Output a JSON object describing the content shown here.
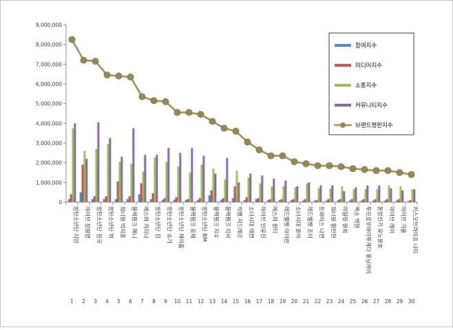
{
  "chart_data": {
    "type": "bar",
    "title": "",
    "xlabel": "",
    "ylabel": "",
    "ylim": [
      0,
      9000000
    ],
    "yticks": [
      0,
      1000000,
      2000000,
      3000000,
      4000000,
      5000000,
      6000000,
      7000000,
      8000000,
      9000000
    ],
    "ytick_labels": [
      "0",
      "1,000,000",
      "2,000,000",
      "3,000,000",
      "4,000,000",
      "5,000,000",
      "6,000,000",
      "7,000,000",
      "8,000,000",
      "9,000,000"
    ],
    "grid": false,
    "legend_position": "top-right",
    "categories": [
      "방탄소년단 지민",
      "아이브 장원영",
      "방탄소년단 정국",
      "방탄소년단 뷔",
      "워너원 박지훈",
      "블랙핑크 제니",
      "에스파 카리나",
      "방탄소년단 진",
      "방탄소년단 슈가",
      "방탄소년단 제이홉",
      "블랙핑크 로제",
      "방탄소년단 RM",
      "블랙핑크 지수",
      "블랙핑크 리사",
      "빅뱅 지드래곤",
      "소녀시대 태연",
      "아이브 안유진",
      "에스파 윈터",
      "레드벨벳 아이린",
      "소녀시대 윤아",
      "레드벨벳 조이",
      "트와이스 나연",
      "워너원 황민현",
      "아일릿 원희",
      "엑소 백현",
      "투모로우바이투게더 휴닝카이",
      "동방신기 유노윤호",
      "아이브 레이",
      "아이브 가을",
      "키스오브라이프 나띠"
    ],
    "ranks": [
      "1",
      "2",
      "3",
      "4",
      "5",
      "6",
      "7",
      "8",
      "9",
      "10",
      "11",
      "12",
      "13",
      "14",
      "15",
      "16",
      "17",
      "18",
      "19",
      "20",
      "21",
      "22",
      "23",
      "24",
      "25",
      "26",
      "27",
      "28",
      "29",
      "30"
    ],
    "series": [
      {
        "name": "참여지수",
        "type": "bar",
        "color": "#4f81bd",
        "values": [
          150000,
          500000,
          150000,
          150000,
          150000,
          150000,
          400000,
          150000,
          120000,
          120000,
          120000,
          100000,
          350000,
          120000,
          200000,
          100000,
          150000,
          100000,
          100000,
          100000,
          80000,
          80000,
          80000,
          100000,
          80000,
          80000,
          80000,
          80000,
          80000,
          60000
        ]
      },
      {
        "name": "미디어지수",
        "type": "bar",
        "color": "#c0504d",
        "values": [
          400000,
          1900000,
          300000,
          300000,
          1050000,
          300000,
          950000,
          450000,
          200000,
          250000,
          150000,
          200000,
          600000,
          200000,
          800000,
          250000,
          200000,
          150000,
          150000,
          150000,
          150000,
          100000,
          150000,
          150000,
          150000,
          150000,
          150000,
          150000,
          150000,
          100000
        ]
      },
      {
        "name": "소통지수",
        "type": "bar",
        "color": "#9bbb59",
        "values": [
          3750000,
          2600000,
          2700000,
          2950000,
          2050000,
          1950000,
          1550000,
          2250000,
          2050000,
          1800000,
          1500000,
          1900000,
          1700000,
          1150000,
          1600000,
          1250000,
          950000,
          800000,
          800000,
          750000,
          950000,
          700000,
          700000,
          800000,
          650000,
          650000,
          650000,
          850000,
          800000,
          650000
        ]
      },
      {
        "name": "커뮤니티지수",
        "type": "bar",
        "color": "#8064a2",
        "values": [
          4000000,
          2200000,
          4050000,
          3250000,
          2300000,
          3750000,
          2400000,
          2400000,
          2750000,
          2500000,
          2750000,
          2350000,
          1450000,
          2250000,
          1000000,
          1450000,
          1350000,
          1200000,
          1100000,
          800000,
          1000000,
          850000,
          850000,
          550000,
          750000,
          850000,
          850000,
          700000,
          600000,
          650000
        ]
      },
      {
        "name": "브랜드평판지수",
        "type": "line",
        "color": "#938953",
        "values": [
          8250000,
          7200000,
          7150000,
          6450000,
          6400000,
          6350000,
          5350000,
          5150000,
          5100000,
          4550000,
          4550000,
          4450000,
          4100000,
          3750000,
          3600000,
          3050000,
          2650000,
          2350000,
          2350000,
          2050000,
          1950000,
          1850000,
          1850000,
          1800000,
          1700000,
          1650000,
          1600000,
          1600000,
          1500000,
          1400000
        ]
      }
    ]
  }
}
